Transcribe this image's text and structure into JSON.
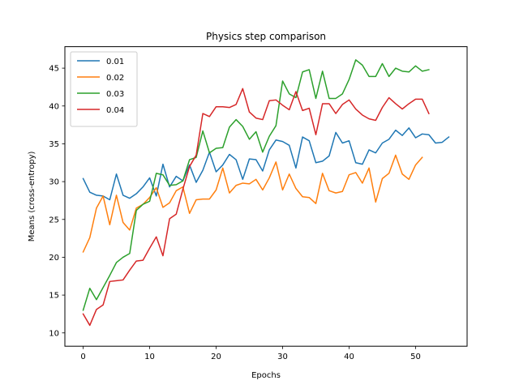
{
  "chart_data": {
    "type": "line",
    "title": "Physics step comparison",
    "xlabel": "Epochs",
    "ylabel": "Means (cross-entropy)",
    "xlim": [
      -2.75,
      57.75
    ],
    "ylim": [
      8.24,
      47.84
    ],
    "xticks": [
      0,
      10,
      20,
      30,
      40,
      50
    ],
    "yticks": [
      10,
      15,
      20,
      25,
      30,
      35,
      40,
      45
    ],
    "grid": false,
    "legend_position": "top-left",
    "series": [
      {
        "name": "0.01",
        "color": "#1f77b4",
        "values": [
          30.4,
          28.6,
          28.2,
          28.1,
          27.6,
          31.0,
          28.2,
          27.8,
          28.4,
          29.3,
          30.5,
          28.1,
          32.3,
          29.3,
          30.7,
          30.1,
          32.2,
          29.9,
          31.5,
          33.9,
          31.3,
          32.2,
          33.6,
          32.9,
          30.3,
          33.0,
          32.9,
          31.4,
          34.2,
          35.5,
          35.3,
          34.8,
          31.8,
          35.9,
          35.4,
          32.5,
          32.7,
          33.4,
          36.5,
          35.1,
          35.4,
          32.5,
          32.3,
          34.2,
          33.8,
          35.1,
          35.6,
          36.8,
          36.1,
          37.1,
          35.8,
          36.3,
          36.2,
          35.1,
          35.2,
          35.9
        ]
      },
      {
        "name": "0.02",
        "color": "#ff7f0e",
        "values": [
          20.7,
          22.6,
          26.5,
          28.1,
          24.3,
          28.2,
          24.6,
          23.6,
          26.5,
          27.0,
          27.9,
          29.2,
          26.6,
          27.2,
          28.8,
          29.3,
          25.8,
          27.6,
          27.7,
          27.7,
          28.9,
          31.8,
          28.5,
          29.5,
          29.8,
          29.7,
          30.3,
          28.9,
          30.5,
          32.6,
          28.9,
          31.0,
          29.1,
          28.0,
          27.9,
          27.1,
          31.1,
          28.8,
          28.5,
          28.7,
          30.9,
          31.2,
          29.8,
          31.8,
          27.3,
          30.4,
          31.1,
          33.5,
          31.0,
          30.3,
          32.2,
          33.2
        ]
      },
      {
        "name": "0.03",
        "color": "#2ca02c",
        "values": [
          13.0,
          15.9,
          14.4,
          16.0,
          17.6,
          19.3,
          20.0,
          20.5,
          26.2,
          27.0,
          27.4,
          31.1,
          30.9,
          29.5,
          29.6,
          30.1,
          32.9,
          33.2,
          36.7,
          33.8,
          34.4,
          34.5,
          37.2,
          38.2,
          37.3,
          35.6,
          36.6,
          33.9,
          36.0,
          37.4,
          43.3,
          41.6,
          41.1,
          44.5,
          44.8,
          41.0,
          44.6,
          41.0,
          41.0,
          41.6,
          43.5,
          46.1,
          45.4,
          43.9,
          43.9,
          45.6,
          43.9,
          45.0,
          44.6,
          44.5,
          45.3,
          44.6,
          44.8
        ]
      },
      {
        "name": "0.04",
        "color": "#d62728",
        "values": [
          12.5,
          11.0,
          13.1,
          13.7,
          16.8,
          16.9,
          17.0,
          18.3,
          19.5,
          19.6,
          21.2,
          22.7,
          20.2,
          25.1,
          25.7,
          29.0,
          32.0,
          33.5,
          39.0,
          38.6,
          39.9,
          39.9,
          39.8,
          40.2,
          42.3,
          39.2,
          38.4,
          38.2,
          40.7,
          40.8,
          40.1,
          39.5,
          41.9,
          39.4,
          39.7,
          36.2,
          40.3,
          40.3,
          39.0,
          40.2,
          40.8,
          39.6,
          38.8,
          38.3,
          38.1,
          39.8,
          41.1,
          40.3,
          39.6,
          40.3,
          40.9,
          40.9,
          39.0
        ]
      }
    ]
  }
}
